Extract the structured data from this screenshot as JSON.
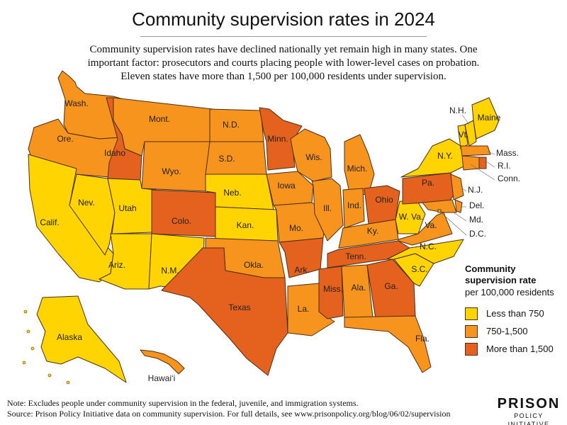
{
  "title": "Community supervision rates in 2024",
  "subtitle": [
    "Community supervision rates have declined nationally yet remain high in many states. One",
    "important factor: prosecutors and courts placing people with lower-level cases on probation.",
    "Eleven states have more than 1,500 per 100,000 residents under supervision."
  ],
  "legend": {
    "title_line1": "Community",
    "title_line2": "supervision rate",
    "subtitle": "per 100,000 residents",
    "items": [
      {
        "label": "Less than 750",
        "color": "#ffd400"
      },
      {
        "label": "750-1,500",
        "color": "#f7941d"
      },
      {
        "label": "More than 1,500",
        "color": "#e5621e"
      }
    ]
  },
  "categories": {
    "low": "Less than 750",
    "mid": "750-1,500",
    "high": "More than 1,500"
  },
  "states": [
    {
      "label": "Wash.",
      "category": "mid"
    },
    {
      "label": "Ore.",
      "category": "mid"
    },
    {
      "label": "Calif.",
      "category": "low"
    },
    {
      "label": "Idaho",
      "category": "high"
    },
    {
      "label": "Nev.",
      "category": "low"
    },
    {
      "label": "Mont.",
      "category": "mid"
    },
    {
      "label": "Wyo.",
      "category": "mid"
    },
    {
      "label": "Utah",
      "category": "low"
    },
    {
      "label": "Ariz.",
      "category": "low"
    },
    {
      "label": "Colo.",
      "category": "high"
    },
    {
      "label": "N.M.",
      "category": "low"
    },
    {
      "label": "N.D.",
      "category": "mid"
    },
    {
      "label": "S.D.",
      "category": "mid"
    },
    {
      "label": "Neb.",
      "category": "low"
    },
    {
      "label": "Kan.",
      "category": "low"
    },
    {
      "label": "Okla.",
      "category": "mid"
    },
    {
      "label": "Texas",
      "category": "high"
    },
    {
      "label": "Minn.",
      "category": "high"
    },
    {
      "label": "Iowa",
      "category": "mid"
    },
    {
      "label": "Mo.",
      "category": "mid"
    },
    {
      "label": "Ark.",
      "category": "high"
    },
    {
      "label": "La.",
      "category": "mid"
    },
    {
      "label": "Wis.",
      "category": "mid"
    },
    {
      "label": "Ill.",
      "category": "mid"
    },
    {
      "label": "Mich.",
      "category": "mid"
    },
    {
      "label": "Ind.",
      "category": "mid"
    },
    {
      "label": "Ohio",
      "category": "high"
    },
    {
      "label": "Ky.",
      "category": "mid"
    },
    {
      "label": "Tenn.",
      "category": "high"
    },
    {
      "label": "Miss.",
      "category": "high"
    },
    {
      "label": "Ala.",
      "category": "mid"
    },
    {
      "label": "Ga.",
      "category": "high"
    },
    {
      "label": "Fla.",
      "category": "mid"
    },
    {
      "label": "S.C.",
      "category": "low"
    },
    {
      "label": "N.C.",
      "category": "low"
    },
    {
      "label": "Va.",
      "category": "mid"
    },
    {
      "label": "W. Va.",
      "category": "low"
    },
    {
      "label": "Pa.",
      "category": "high"
    },
    {
      "label": "N.Y.",
      "category": "low"
    },
    {
      "label": "Vt.",
      "category": "low"
    },
    {
      "label": "N.H.",
      "category": "low"
    },
    {
      "label": "Maine",
      "category": "low"
    },
    {
      "label": "Mass.",
      "category": "mid"
    },
    {
      "label": "R.I.",
      "category": "high"
    },
    {
      "label": "Conn.",
      "category": "mid"
    },
    {
      "label": "N.J.",
      "category": "mid"
    },
    {
      "label": "Del.",
      "category": "mid"
    },
    {
      "label": "Md.",
      "category": "mid"
    },
    {
      "label": "D.C.",
      "category": "low"
    },
    {
      "label": "Alaska",
      "category": "low"
    },
    {
      "label": "Hawai‘i",
      "category": "mid"
    }
  ],
  "note": "Note: Excludes people under community supervision in the federal, juvenile, and immigration systems.",
  "source": "Source: Prison Policy Initiative data on community supervision. For full details, see www.prisonpolicy.org/blog/06/02/supervision",
  "logo": {
    "line1": "PRISON",
    "line2": "POLICY INITIATIVE"
  }
}
